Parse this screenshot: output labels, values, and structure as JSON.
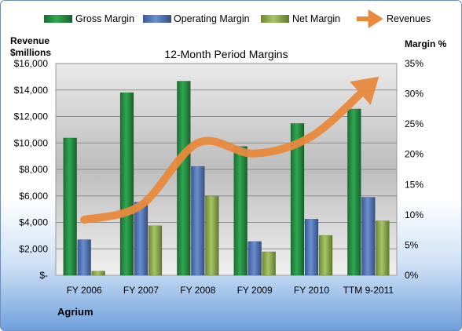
{
  "chart_data": {
    "type": "bar",
    "title": "12-Month Period Margins",
    "company": "Agrium",
    "ylabel_left": [
      "Revenue",
      "$millions"
    ],
    "ylabel_right": "Margin %",
    "categories": [
      "FY 2006",
      "FY 2007",
      "FY 2008",
      "FY 2009",
      "FY 2010",
      "TTM 9-2011"
    ],
    "left_axis": {
      "min": 0,
      "max": 16000,
      "ticks": [
        0,
        2000,
        4000,
        6000,
        8000,
        10000,
        12000,
        14000,
        16000
      ],
      "tick_labels": [
        "$-",
        "$2,000",
        "$4,000",
        "$6,000",
        "$8,000",
        "$10,000",
        "$12,000",
        "$14,000",
        "$16,000"
      ]
    },
    "right_axis": {
      "min": 0,
      "max": 35,
      "ticks": [
        0,
        5,
        10,
        15,
        20,
        25,
        30,
        35
      ],
      "tick_labels": [
        "0%",
        "5%",
        "10%",
        "15%",
        "20%",
        "25%",
        "30%",
        "35%"
      ]
    },
    "series": [
      {
        "name": "Gross Margin",
        "axis": "right",
        "kind": "bar",
        "color": "#1f8a3e",
        "values": [
          22.7,
          30.2,
          32.1,
          21.3,
          25.1,
          27.5
        ]
      },
      {
        "name": "Operating Margin",
        "axis": "right",
        "kind": "bar",
        "color": "#4f74b8",
        "values": [
          5.9,
          12.1,
          18.0,
          5.6,
          9.3,
          12.9
        ]
      },
      {
        "name": "Net Margin",
        "axis": "right",
        "kind": "bar",
        "color": "#8faf4c",
        "values": [
          0.7,
          8.2,
          13.1,
          3.9,
          6.6,
          9.0
        ]
      },
      {
        "name": "Revenues",
        "axis": "left",
        "kind": "line",
        "color": "#e8893c",
        "values": [
          4200,
          5300,
          10000,
          9200,
          10500,
          14300
        ]
      }
    ],
    "grid": true,
    "legend_position": "top"
  }
}
